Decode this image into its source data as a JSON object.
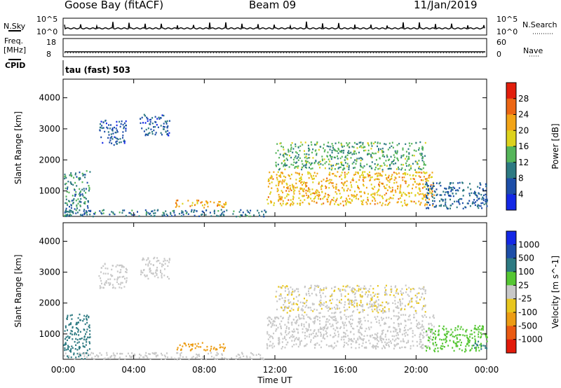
{
  "header": {
    "station": "Goose Bay (fitACF)",
    "beam": "Beam 09",
    "date": "11/Jan/2019"
  },
  "summary": {
    "nsky_label": "N.Sky",
    "nsearch_label": "N.Search",
    "count_ticks": [
      "10^5",
      "10^0"
    ],
    "freq_label": "Freq.",
    "freq_unit": "[MHz]",
    "freq_ticks": [
      "18",
      "8"
    ],
    "nave_label": "Nave",
    "nave_ticks": [
      "60",
      "0"
    ],
    "cpid_label": "CPID",
    "cpid_text": "tau (fast) 503"
  },
  "colors": {
    "power_scale": [
      "#1428e6",
      "#1d4ea8",
      "#2d7a82",
      "#55b55a",
      "#ddd21d",
      "#f2a417",
      "#ec6614",
      "#e21e0c"
    ],
    "velocity_scale": [
      "#1428e6",
      "#1d4ea8",
      "#2d7a82",
      "#55c633",
      "#c8c8c8",
      "#e8c61e",
      "#ec9c14",
      "#ea5a12",
      "#e21a0a"
    ]
  },
  "chart_data": [
    {
      "type": "heatmap",
      "quantity": "Power",
      "xlabel": "Time UT",
      "ylabel": "Slant Range [km]",
      "x_ticks": [
        "00:00",
        "04:00",
        "08:00",
        "12:00",
        "16:00",
        "20:00",
        "00:00"
      ],
      "x_range_hours": [
        0,
        24
      ],
      "y_ticks": [
        1000,
        2000,
        3000,
        4000
      ],
      "ylim": [
        180,
        4600
      ],
      "colorbar": {
        "label": "Power [dB]",
        "ticks": [
          "4",
          "8",
          "12",
          "16",
          "20",
          "24",
          "28"
        ],
        "range": [
          0,
          32
        ]
      },
      "regions": [
        {
          "t": [
            0.0,
            1.5
          ],
          "r": [
            200,
            1700
          ],
          "value": 10
        },
        {
          "t": [
            2.0,
            3.6
          ],
          "r": [
            2500,
            3300
          ],
          "value": 7
        },
        {
          "t": [
            4.3,
            6.0
          ],
          "r": [
            2800,
            3500
          ],
          "value": 7
        },
        {
          "t": [
            6.2,
            9.2
          ],
          "r": [
            480,
            740
          ],
          "value": 22
        },
        {
          "t": [
            0.0,
            11.5
          ],
          "r": [
            200,
            420
          ],
          "value": 9
        },
        {
          "t": [
            11.5,
            21.0
          ],
          "r": [
            550,
            1650
          ],
          "value": 21
        },
        {
          "t": [
            12.0,
            20.5
          ],
          "r": [
            1700,
            2600
          ],
          "value": 13
        },
        {
          "t": [
            20.5,
            24.0
          ],
          "r": [
            450,
            1300
          ],
          "value": 8
        },
        {
          "t": [
            23.2,
            24.0
          ],
          "r": [
            520,
            800
          ],
          "value": 7
        }
      ]
    },
    {
      "type": "heatmap",
      "quantity": "Velocity",
      "xlabel": "Time UT",
      "ylabel": "Slant Range [km]",
      "x_ticks": [
        "00:00",
        "04:00",
        "08:00",
        "12:00",
        "16:00",
        "20:00",
        "00:00"
      ],
      "x_range_hours": [
        0,
        24
      ],
      "y_ticks": [
        1000,
        2000,
        3000,
        4000
      ],
      "ylim": [
        180,
        4600
      ],
      "colorbar": {
        "label": "Velocity [m s^-1]",
        "ticks": [
          "1000",
          "500",
          "100",
          "25",
          "-25",
          "-100",
          "-500",
          "-1000"
        ]
      },
      "regions": [
        {
          "t": [
            0.0,
            1.5
          ],
          "r": [
            200,
            1700
          ],
          "value": 150
        },
        {
          "t": [
            2.0,
            3.6
          ],
          "r": [
            2500,
            3300
          ],
          "value": 0
        },
        {
          "t": [
            4.3,
            6.0
          ],
          "r": [
            2800,
            3500
          ],
          "value": 0
        },
        {
          "t": [
            6.2,
            9.2
          ],
          "r": [
            480,
            740
          ],
          "value": -120
        },
        {
          "t": [
            0.0,
            11.5
          ],
          "r": [
            200,
            420
          ],
          "value": 0
        },
        {
          "t": [
            11.5,
            21.0
          ],
          "r": [
            550,
            1650
          ],
          "value": 0
        },
        {
          "t": [
            12.0,
            20.5
          ],
          "r": [
            1700,
            2600
          ],
          "value": -20
        },
        {
          "t": [
            20.5,
            24.0
          ],
          "r": [
            450,
            1300
          ],
          "value": 80
        },
        {
          "t": [
            23.2,
            24.0
          ],
          "r": [
            520,
            800
          ],
          "value": 150
        }
      ]
    }
  ]
}
